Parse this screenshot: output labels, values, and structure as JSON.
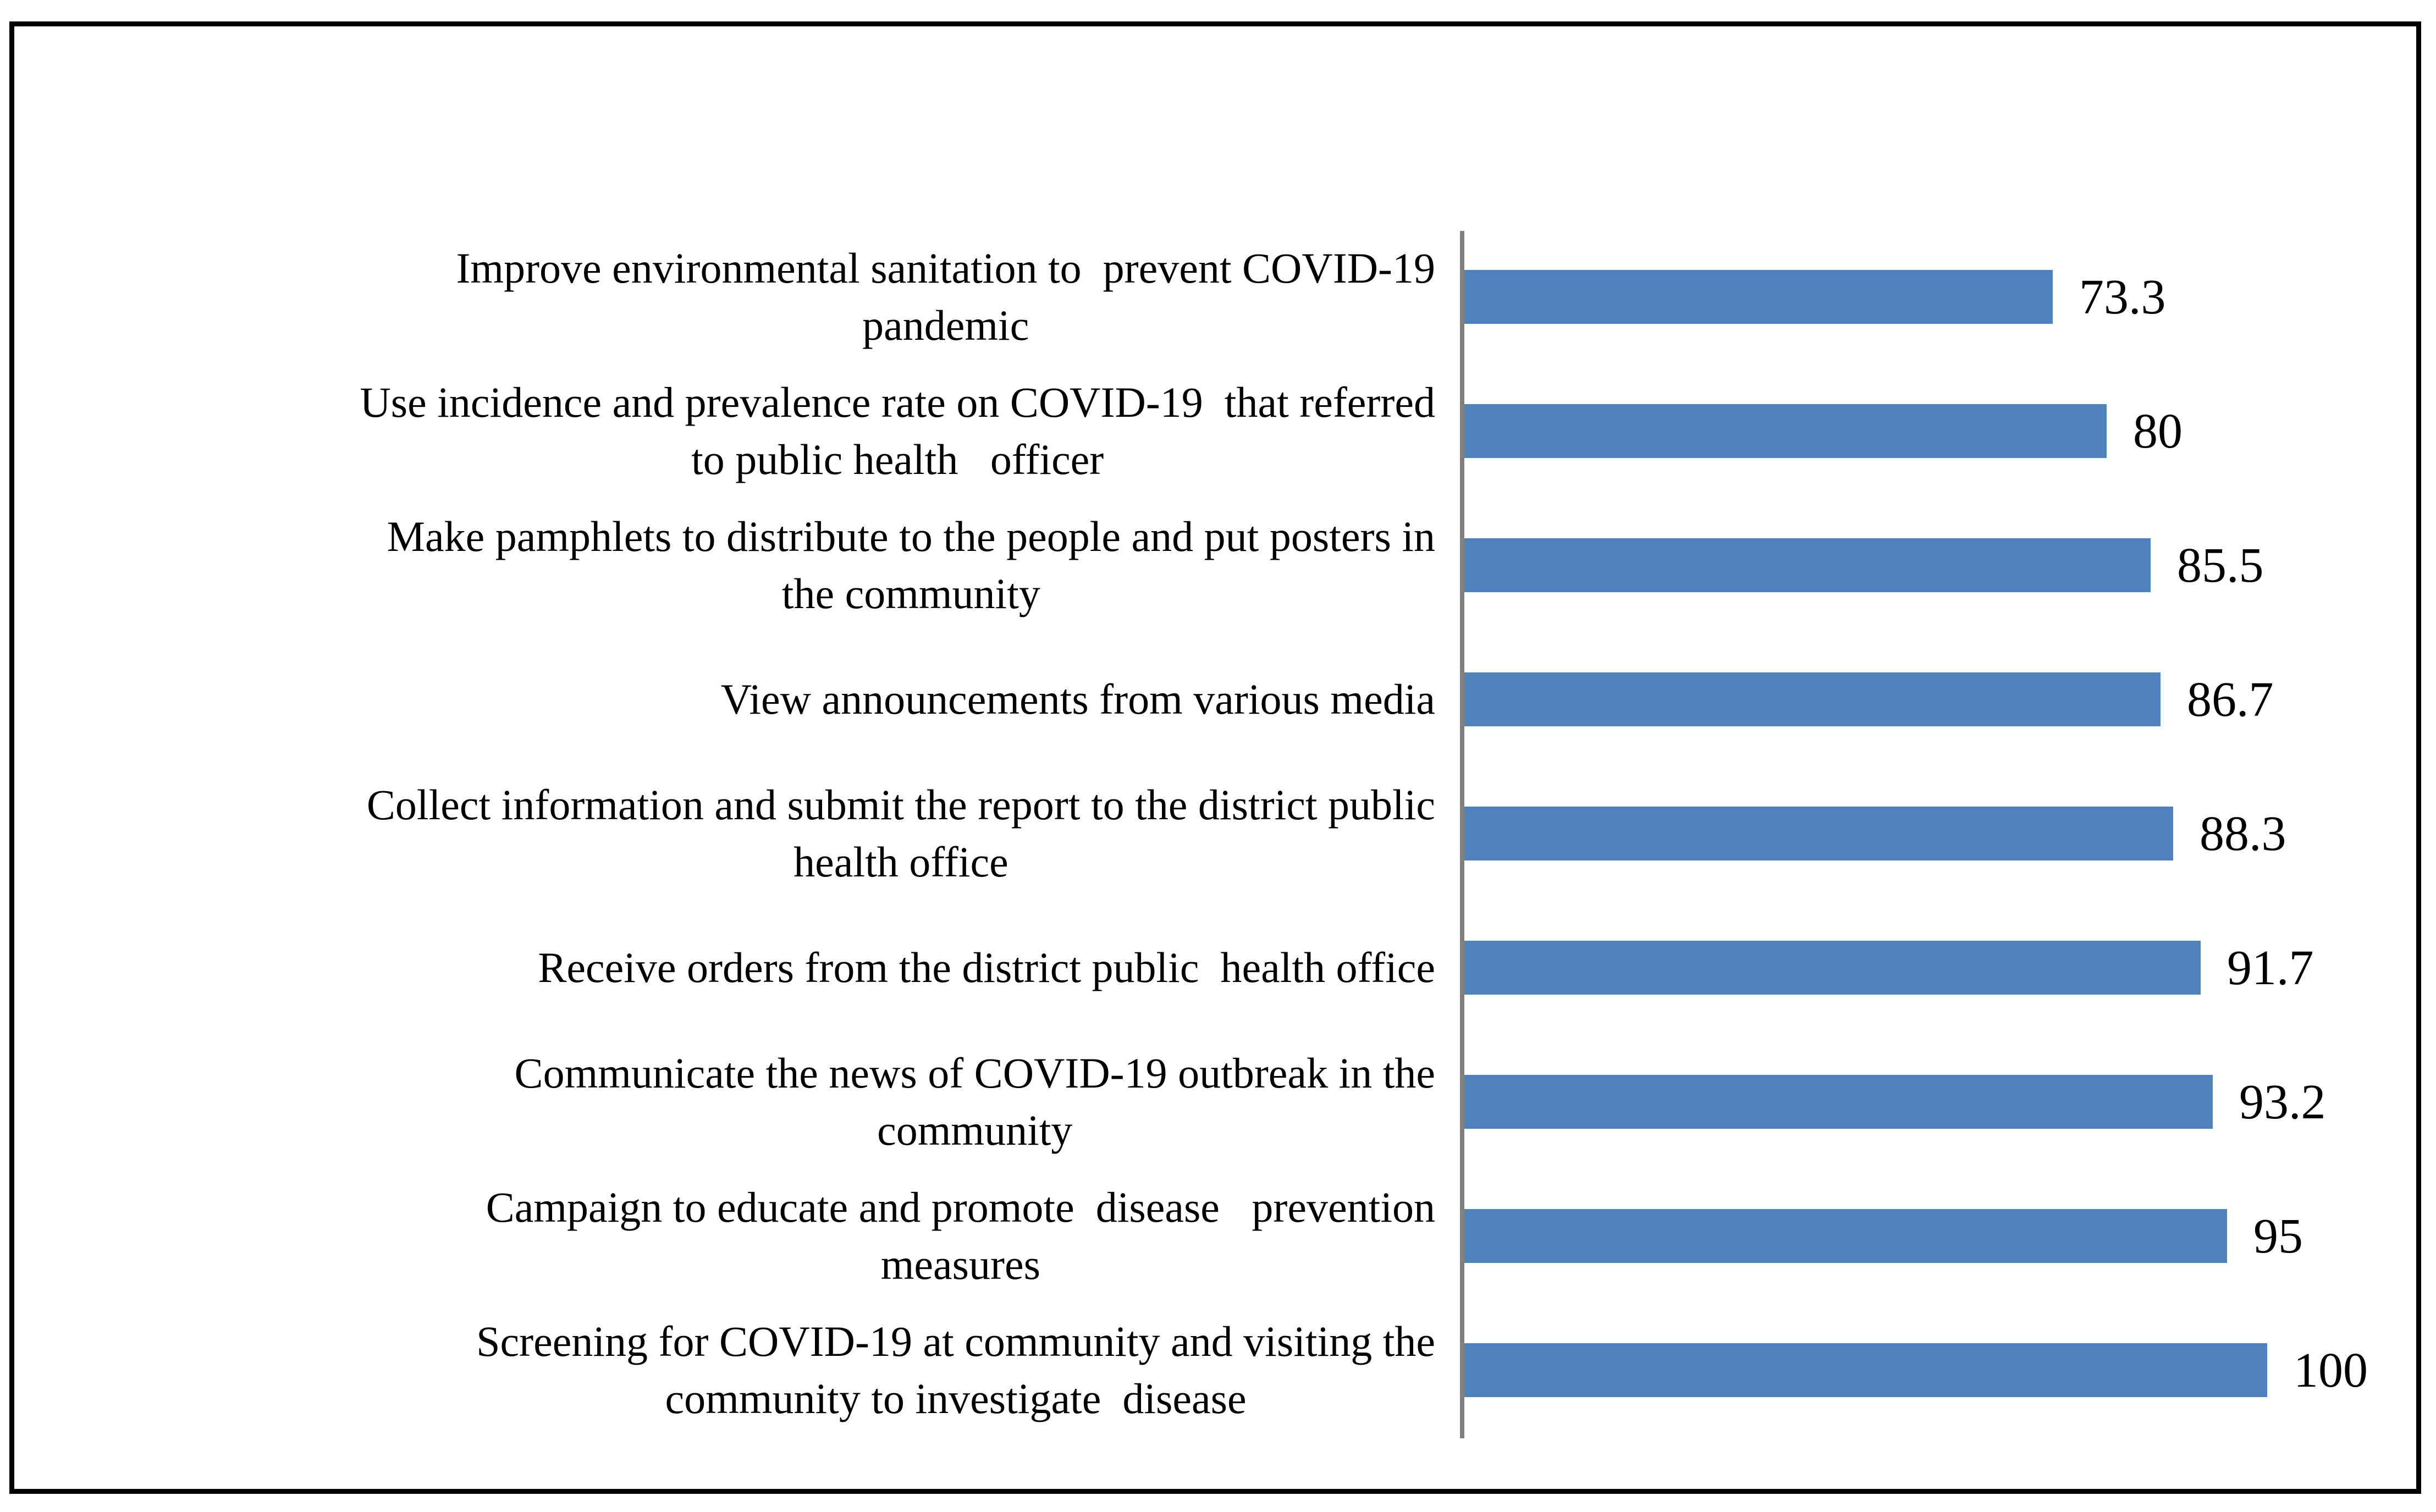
{
  "chart_data": {
    "type": "bar",
    "orientation": "horizontal",
    "title": "",
    "xlabel": "",
    "ylabel": "",
    "xlim": [
      0,
      100
    ],
    "grid": false,
    "legend": false,
    "bar_color": "#4F81BD",
    "axis_color": "#808080",
    "frame_color": "#000000",
    "categories": [
      "Improve environmental sanitation to  prevent COVID-19\npandemic",
      "Use incidence and prevalence rate on COVID-19  that referred\nto public health   officer",
      "Make pamphlets to distribute to the people and put posters in\nthe community",
      "View announcements from various media",
      "Collect information and submit the report to the district public\nhealth office",
      "Receive orders from the district public  health office",
      "Communicate the news of COVID-19 outbreak in the\ncommunity",
      "Campaign to educate and promote  disease   prevention\nmeasures",
      "Screening for COVID-19 at community and visiting the\ncommunity to investigate  disease"
    ],
    "values": [
      73.3,
      80,
      85.5,
      86.7,
      88.3,
      91.7,
      93.2,
      95,
      100
    ],
    "value_labels": [
      "73.3",
      "80",
      "85.5",
      "86.7",
      "88.3",
      "91.7",
      "93.2",
      "95",
      "100"
    ]
  }
}
